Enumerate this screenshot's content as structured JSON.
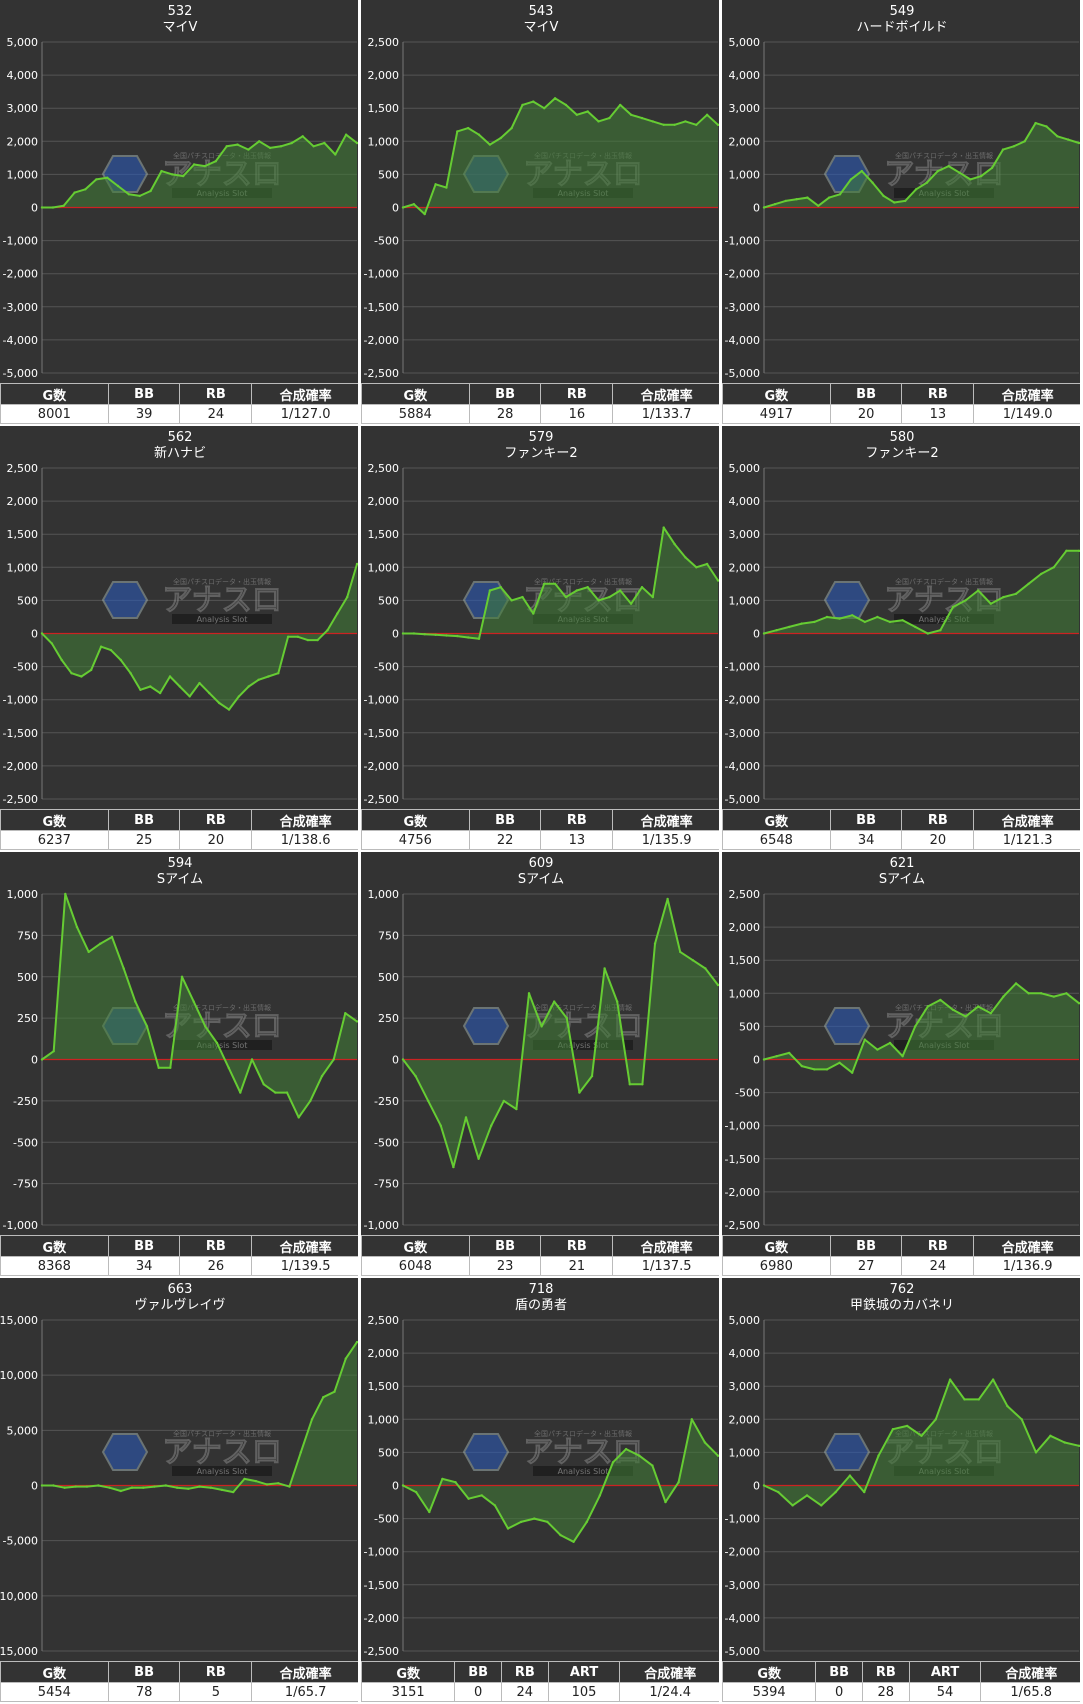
{
  "watermark": {
    "logo": "アナスロ",
    "sub": "Analysis Slot",
    "top": "全国パチスロデータ・出玉情報"
  },
  "colors": {
    "line": "#66cc33",
    "fill": "#3f7d35",
    "zero": "#cc2222",
    "grid": "#555555",
    "bg": "#333333"
  },
  "panels": [
    {
      "number": "532",
      "name": "マイV",
      "stats": {
        "headers": [
          "G数",
          "BB",
          "RB",
          "合成確率"
        ],
        "values": [
          "8001",
          "39",
          "24",
          "1/127.0"
        ]
      },
      "chart_data": {
        "type": "area",
        "ylim": [
          -5000,
          5000
        ],
        "yticks": [
          5000,
          4000,
          3000,
          2000,
          1000,
          0,
          -1000,
          -2000,
          -3000,
          -4000,
          -5000
        ],
        "ytick_labels": [
          "5,000",
          "4,000",
          "3,000",
          "2,000",
          "1,000",
          "0",
          "-1,000",
          "-2,000",
          "-3,000",
          "-4,000",
          "-5,000"
        ],
        "values": [
          0,
          0,
          50,
          450,
          550,
          850,
          900,
          650,
          400,
          350,
          500,
          1100,
          1000,
          950,
          1300,
          1250,
          1400,
          1850,
          1900,
          1750,
          2000,
          1800,
          1850,
          1950,
          2150,
          1850,
          1950,
          1600,
          2200,
          1950
        ]
      }
    },
    {
      "number": "543",
      "name": "マイV",
      "stats": {
        "headers": [
          "G数",
          "BB",
          "RB",
          "合成確率"
        ],
        "values": [
          "5884",
          "28",
          "16",
          "1/133.7"
        ]
      },
      "chart_data": {
        "type": "area",
        "ylim": [
          -2500,
          2500
        ],
        "yticks": [
          2500,
          2000,
          1500,
          1000,
          500,
          0,
          -500,
          -1000,
          -1500,
          -2000,
          -2500
        ],
        "ytick_labels": [
          "2,500",
          "2,000",
          "1,500",
          "1,000",
          "500",
          "0",
          "-500",
          "-1,000",
          "-1,500",
          "-2,000",
          "-2,500"
        ],
        "values": [
          0,
          50,
          -100,
          350,
          300,
          1150,
          1200,
          1100,
          950,
          1050,
          1200,
          1550,
          1600,
          1500,
          1650,
          1550,
          1400,
          1450,
          1300,
          1350,
          1550,
          1400,
          1350,
          1300,
          1250,
          1250,
          1300,
          1250,
          1400,
          1250
        ]
      }
    },
    {
      "number": "549",
      "name": "ハードボイルド",
      "stats": {
        "headers": [
          "G数",
          "BB",
          "RB",
          "合成確率"
        ],
        "values": [
          "4917",
          "20",
          "13",
          "1/149.0"
        ]
      },
      "chart_data": {
        "type": "area",
        "ylim": [
          -5000,
          5000
        ],
        "yticks": [
          5000,
          4000,
          3000,
          2000,
          1000,
          0,
          -1000,
          -2000,
          -3000,
          -4000,
          -5000
        ],
        "ytick_labels": [
          "5,000",
          "4,000",
          "3,000",
          "2,000",
          "1,000",
          "0",
          "-1,000",
          "-2,000",
          "-3,000",
          "-4,000",
          "-5,000"
        ],
        "values": [
          0,
          100,
          200,
          250,
          300,
          50,
          300,
          400,
          850,
          1100,
          750,
          350,
          150,
          200,
          550,
          750,
          1100,
          1250,
          1050,
          850,
          950,
          1200,
          1750,
          1850,
          2000,
          2550,
          2450,
          2150,
          2050,
          1950
        ]
      }
    },
    {
      "number": "562",
      "name": "新ハナビ",
      "stats": {
        "headers": [
          "G数",
          "BB",
          "RB",
          "合成確率"
        ],
        "values": [
          "6237",
          "25",
          "20",
          "1/138.6"
        ]
      },
      "chart_data": {
        "type": "area",
        "ylim": [
          -2500,
          2500
        ],
        "yticks": [
          2500,
          2000,
          1500,
          1000,
          500,
          0,
          -500,
          -1000,
          -1500,
          -2000,
          -2500
        ],
        "ytick_labels": [
          "2,500",
          "2,000",
          "1,500",
          "1,000",
          "500",
          "0",
          "-500",
          "-1,000",
          "-1,500",
          "-2,000",
          "-2,500"
        ],
        "values": [
          0,
          -150,
          -400,
          -600,
          -650,
          -550,
          -200,
          -250,
          -400,
          -600,
          -850,
          -800,
          -900,
          -650,
          -800,
          -950,
          -750,
          -900,
          -1050,
          -1150,
          -950,
          -800,
          -700,
          -650,
          -600,
          -50,
          -50,
          -100,
          -100,
          50,
          300,
          550,
          1050
        ]
      }
    },
    {
      "number": "579",
      "name": "ファンキー2",
      "stats": {
        "headers": [
          "G数",
          "BB",
          "RB",
          "合成確率"
        ],
        "values": [
          "4756",
          "22",
          "13",
          "1/135.9"
        ]
      },
      "chart_data": {
        "type": "area",
        "ylim": [
          -2500,
          2500
        ],
        "yticks": [
          2500,
          2000,
          1500,
          1000,
          500,
          0,
          -500,
          -1000,
          -1500,
          -2000,
          -2500
        ],
        "ytick_labels": [
          "2,500",
          "2,000",
          "1,500",
          "1,000",
          "500",
          "0",
          "-500",
          "-1,000",
          "-1,500",
          "-2,000",
          "-2,500"
        ],
        "values": [
          0,
          0,
          -10,
          -20,
          -30,
          -40,
          -60,
          -80,
          650,
          700,
          500,
          550,
          300,
          750,
          750,
          550,
          650,
          700,
          500,
          550,
          650,
          450,
          700,
          550,
          1600,
          1350,
          1150,
          1000,
          1050,
          800
        ]
      }
    },
    {
      "number": "580",
      "name": "ファンキー2",
      "stats": {
        "headers": [
          "G数",
          "BB",
          "RB",
          "合成確率"
        ],
        "values": [
          "6548",
          "34",
          "20",
          "1/121.3"
        ]
      },
      "chart_data": {
        "type": "area",
        "ylim": [
          -5000,
          5000
        ],
        "yticks": [
          5000,
          4000,
          3000,
          2000,
          1000,
          0,
          -1000,
          -2000,
          -3000,
          -4000,
          -5000
        ],
        "ytick_labels": [
          "5,000",
          "4,000",
          "3,000",
          "2,000",
          "1,000",
          "0",
          "-1,000",
          "-2,000",
          "-3,000",
          "-4,000",
          "-5,000"
        ],
        "values": [
          0,
          100,
          200,
          300,
          350,
          500,
          450,
          550,
          350,
          500,
          350,
          400,
          200,
          0,
          100,
          800,
          1000,
          1300,
          900,
          1100,
          1200,
          1500,
          1800,
          2000,
          2500,
          2500
        ]
      }
    },
    {
      "number": "594",
      "name": "Sアイム",
      "stats": {
        "headers": [
          "G数",
          "BB",
          "RB",
          "合成確率"
        ],
        "values": [
          "8368",
          "34",
          "26",
          "1/139.5"
        ]
      },
      "chart_data": {
        "type": "area",
        "ylim": [
          -1000,
          1000
        ],
        "yticks": [
          1000,
          750,
          500,
          250,
          0,
          -250,
          -500,
          -750,
          -1000
        ],
        "ytick_labels": [
          "1,000",
          "750",
          "500",
          "250",
          "0",
          "-250",
          "-500",
          "-750",
          "-1,000"
        ],
        "values": [
          0,
          50,
          1000,
          800,
          650,
          700,
          740,
          550,
          350,
          200,
          -50,
          -50,
          500,
          350,
          200,
          100,
          -50,
          -200,
          0,
          -150,
          -200,
          -200,
          -350,
          -250,
          -100,
          0,
          280,
          230
        ]
      }
    },
    {
      "number": "609",
      "name": "Sアイム",
      "stats": {
        "headers": [
          "G数",
          "BB",
          "RB",
          "合成確率"
        ],
        "values": [
          "6048",
          "23",
          "21",
          "1/137.5"
        ]
      },
      "chart_data": {
        "type": "area",
        "ylim": [
          -1000,
          1000
        ],
        "yticks": [
          1000,
          750,
          500,
          250,
          0,
          -250,
          -500,
          -750,
          -1000
        ],
        "ytick_labels": [
          "1,000",
          "750",
          "500",
          "250",
          "0",
          "-250",
          "-500",
          "-750",
          "-1,000"
        ],
        "values": [
          0,
          -100,
          -250,
          -400,
          -650,
          -350,
          -600,
          -400,
          -250,
          -300,
          400,
          200,
          350,
          250,
          -200,
          -100,
          550,
          350,
          -150,
          -150,
          700,
          970,
          650,
          600,
          550,
          450
        ]
      }
    },
    {
      "number": "621",
      "name": "Sアイム",
      "stats": {
        "headers": [
          "G数",
          "BB",
          "RB",
          "合成確率"
        ],
        "values": [
          "6980",
          "27",
          "24",
          "1/136.9"
        ]
      },
      "chart_data": {
        "type": "area",
        "ylim": [
          -2500,
          2500
        ],
        "yticks": [
          2500,
          2000,
          1500,
          1000,
          500,
          0,
          -500,
          -1000,
          -1500,
          -2000,
          -2500
        ],
        "ytick_labels": [
          "2,500",
          "2,000",
          "1,500",
          "1,000",
          "500",
          "0",
          "-500",
          "-1,000",
          "-1,500",
          "-2,000",
          "-2,500"
        ],
        "values": [
          0,
          50,
          100,
          -100,
          -150,
          -150,
          -50,
          -200,
          300,
          150,
          250,
          50,
          500,
          800,
          900,
          750,
          650,
          800,
          700,
          950,
          1150,
          1000,
          1000,
          950,
          1000,
          850
        ]
      }
    },
    {
      "number": "663",
      "name": "ヴァルヴレイヴ",
      "stats": {
        "headers": [
          "G数",
          "BB",
          "RB",
          "合成確率"
        ],
        "values": [
          "5454",
          "78",
          "5",
          "1/65.7"
        ]
      },
      "chart_data": {
        "type": "area",
        "ylim": [
          -15000,
          15000
        ],
        "yticks": [
          15000,
          10000,
          5000,
          0,
          -5000,
          -10000,
          -15000
        ],
        "ytick_labels": [
          "15,000",
          "10,000",
          "5,000",
          "0",
          "-5,000",
          "-10,000",
          "-15,000"
        ],
        "values": [
          0,
          0,
          -200,
          -100,
          -100,
          0,
          -200,
          -500,
          -200,
          -200,
          -100,
          0,
          -200,
          -300,
          -100,
          -200,
          -400,
          -600,
          600,
          400,
          100,
          200,
          -100,
          3000,
          6000,
          8000,
          8500,
          11500,
          13000
        ]
      }
    },
    {
      "number": "718",
      "name": "盾の勇者",
      "stats": {
        "headers": [
          "G数",
          "BB",
          "RB",
          "ART",
          "合成確率"
        ],
        "values": [
          "3151",
          "0",
          "24",
          "105",
          "1/24.4"
        ]
      },
      "chart_data": {
        "type": "area",
        "ylim": [
          -2500,
          2500
        ],
        "yticks": [
          2500,
          2000,
          1500,
          1000,
          500,
          0,
          -500,
          -1000,
          -1500,
          -2000,
          -2500
        ],
        "ytick_labels": [
          "2,500",
          "2,000",
          "1,500",
          "1,000",
          "500",
          "0",
          "-500",
          "-1,000",
          "-1,500",
          "-2,000",
          "-2,500"
        ],
        "values": [
          0,
          -100,
          -400,
          100,
          50,
          -200,
          -150,
          -300,
          -650,
          -550,
          -500,
          -550,
          -750,
          -850,
          -550,
          -150,
          350,
          550,
          450,
          300,
          -250,
          50,
          1000,
          650,
          450
        ]
      }
    },
    {
      "number": "762",
      "name": "甲鉄城のカバネリ",
      "stats": {
        "headers": [
          "G数",
          "BB",
          "RB",
          "ART",
          "合成確率"
        ],
        "values": [
          "5394",
          "0",
          "28",
          "54",
          "1/65.8"
        ]
      },
      "chart_data": {
        "type": "area",
        "ylim": [
          -5000,
          5000
        ],
        "yticks": [
          5000,
          4000,
          3000,
          2000,
          1000,
          0,
          -1000,
          -2000,
          -3000,
          -4000,
          -5000
        ],
        "ytick_labels": [
          "5,000",
          "4,000",
          "3,000",
          "2,000",
          "1,000",
          "0",
          "-1,000",
          "-2,000",
          "-3,000",
          "-4,000",
          "-5,000"
        ],
        "values": [
          0,
          -200,
          -600,
          -300,
          -600,
          -200,
          300,
          -200,
          900,
          1700,
          1800,
          1500,
          2000,
          3200,
          2600,
          2600,
          3200,
          2400,
          2000,
          1000,
          1500,
          1300,
          1200
        ]
      }
    }
  ]
}
